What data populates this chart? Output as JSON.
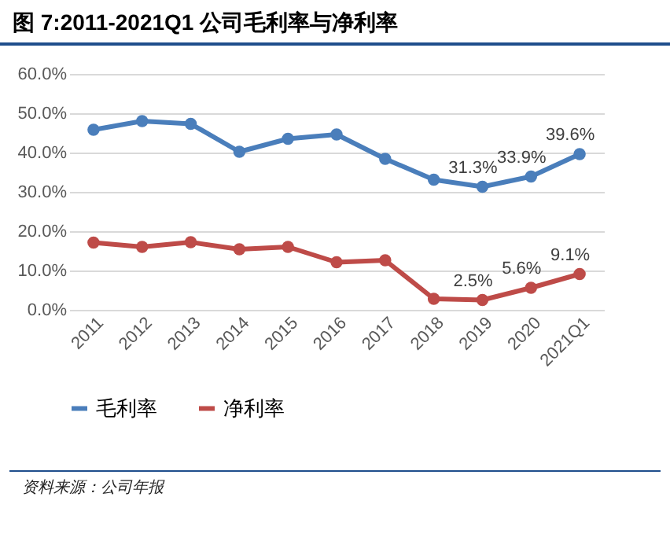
{
  "chart_data": {
    "type": "line",
    "title": "图 7:2011-2021Q1 公司毛利率与净利率",
    "categories": [
      "2011",
      "2012",
      "2013",
      "2014",
      "2015",
      "2016",
      "2017",
      "2018",
      "2019",
      "2020",
      "2021Q1"
    ],
    "series": [
      {
        "name": "毛利率",
        "color": "#4a7ebb",
        "values": [
          45.8,
          48.0,
          47.3,
          40.2,
          43.5,
          44.6,
          38.4,
          33.1,
          31.3,
          33.9,
          39.6
        ],
        "value_labels": [
          null,
          null,
          null,
          null,
          null,
          null,
          null,
          null,
          "31.3%",
          "33.9%",
          "39.6%"
        ]
      },
      {
        "name": "净利率",
        "color": "#be4b48",
        "values": [
          17.1,
          16.0,
          17.2,
          15.4,
          16.0,
          12.1,
          12.6,
          2.8,
          2.5,
          5.6,
          9.1
        ],
        "value_labels": [
          null,
          null,
          null,
          null,
          null,
          null,
          null,
          null,
          "2.5%",
          "5.6%",
          "9.1%"
        ]
      }
    ],
    "ylim": [
      0,
      60
    ],
    "yticks": [
      {
        "value": 0,
        "label": "0.0%"
      },
      {
        "value": 10,
        "label": "10.0%"
      },
      {
        "value": 20,
        "label": "20.0%"
      },
      {
        "value": 30,
        "label": "30.0%"
      },
      {
        "value": 40,
        "label": "40.0%"
      },
      {
        "value": 50,
        "label": "50.0%"
      },
      {
        "value": 60,
        "label": "60.0%"
      }
    ],
    "grid": "y",
    "legend": "bottom",
    "marker": "circle",
    "line_style": "solid",
    "annotations": [
      "资料来源：公司年报"
    ]
  }
}
